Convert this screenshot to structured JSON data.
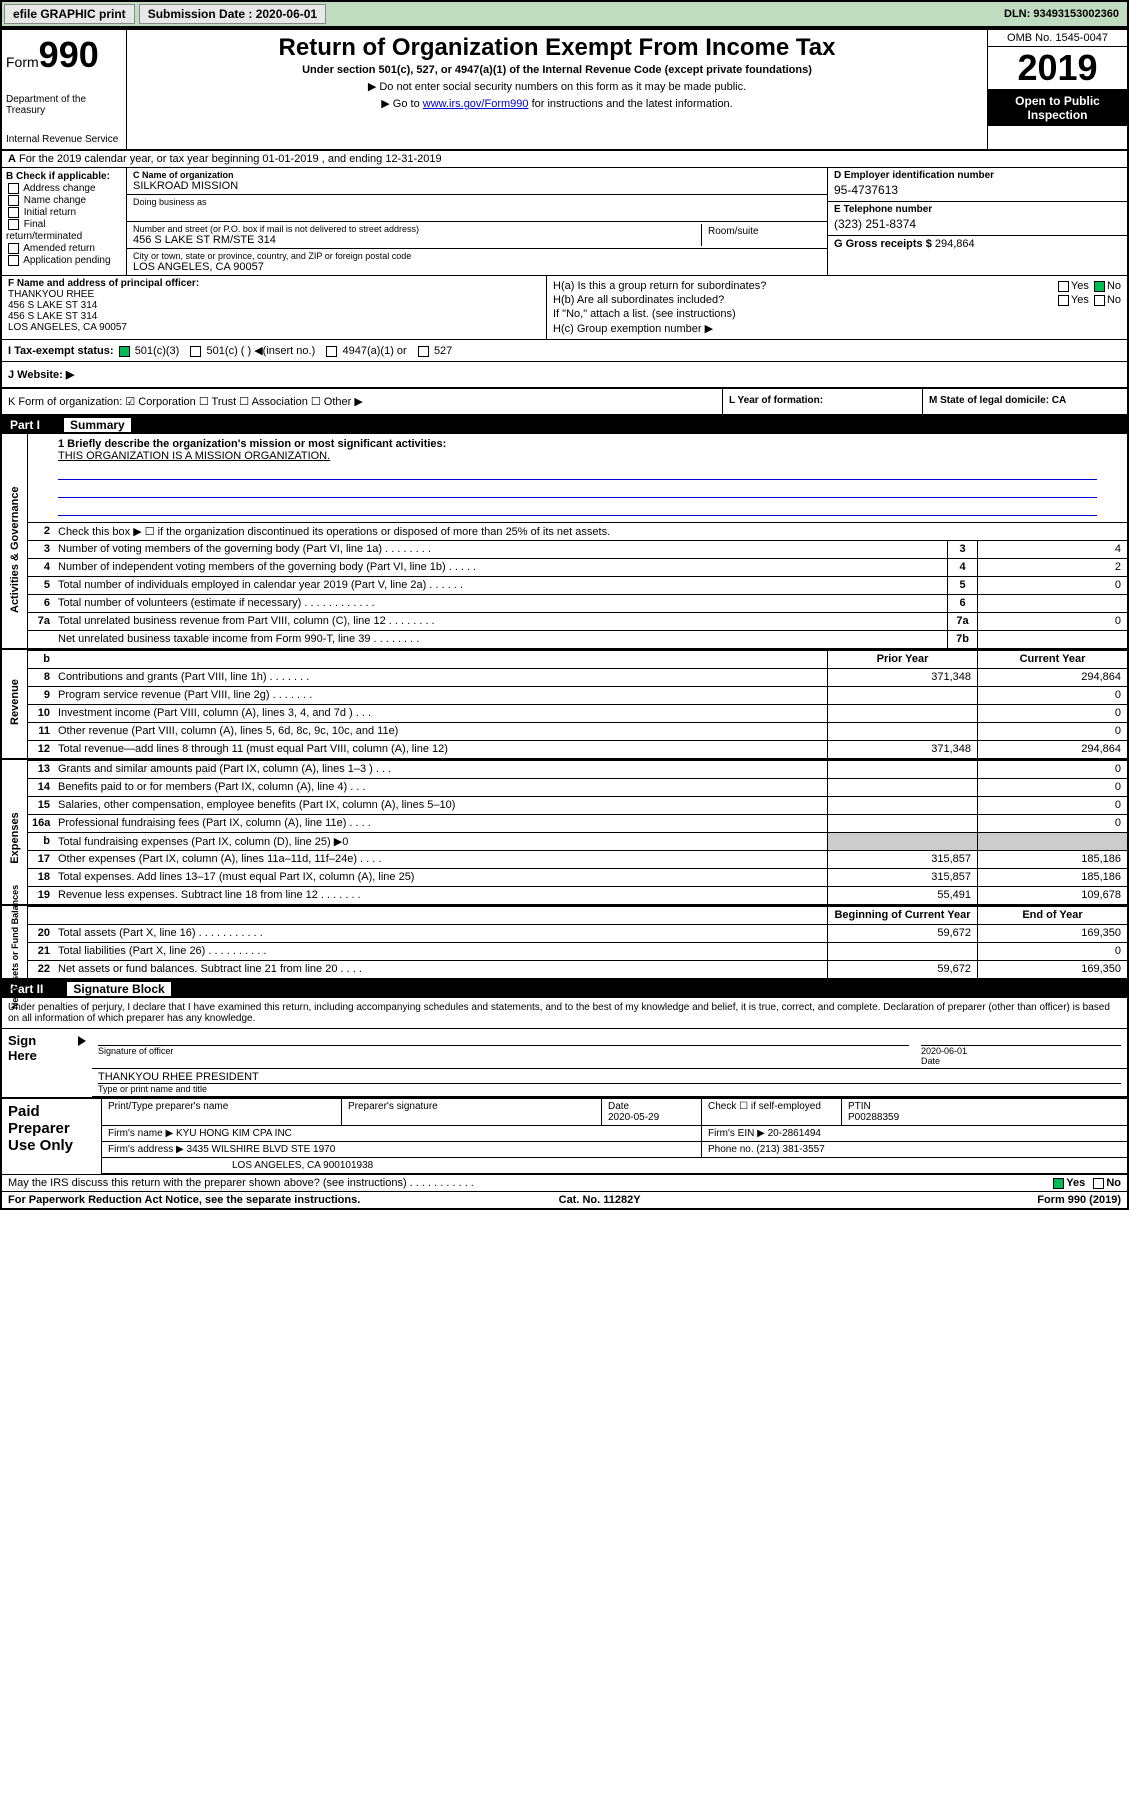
{
  "topbar": {
    "efile": "efile GRAPHIC print",
    "subdate_lbl": "Submission Date : 2020-06-01",
    "dln": "DLN: 93493153002360"
  },
  "header": {
    "form_lbl": "Form",
    "form_no": "990",
    "dept": "Department of the Treasury",
    "irs": "Internal Revenue Service",
    "title": "Return of Organization Exempt From Income Tax",
    "sub": "Under section 501(c), 527, or 4947(a)(1) of the Internal Revenue Code (except private foundations)",
    "note1": "▶ Do not enter social security numbers on this form as it may be made public.",
    "note2_pre": "▶ Go to ",
    "note2_link": "www.irs.gov/Form990",
    "note2_post": " for instructions and the latest information.",
    "omb": "OMB No. 1545-0047",
    "year": "2019",
    "open": "Open to Public Inspection"
  },
  "A": "For the 2019 calendar year, or tax year beginning 01-01-2019    , and ending 12-31-2019",
  "B": {
    "lbl": "B Check if applicable:",
    "opts": [
      "Address change",
      "Name change",
      "Initial return",
      "Final return/terminated",
      "Amended return",
      "Application pending"
    ]
  },
  "C": {
    "name_lbl": "C Name of organization",
    "name": "SILKROAD MISSION",
    "dba_lbl": "Doing business as",
    "addr_lbl": "Number and street (or P.O. box if mail is not delivered to street address)",
    "room_lbl": "Room/suite",
    "addr": "456 S LAKE ST RM/STE 314",
    "city_lbl": "City or town, state or province, country, and ZIP or foreign postal code",
    "city": "LOS ANGELES, CA  90057"
  },
  "D": {
    "lbl": "D Employer identification number",
    "val": "95-4737613"
  },
  "E": {
    "lbl": "E Telephone number",
    "val": "(323) 251-8374"
  },
  "G": {
    "lbl": "G Gross receipts $",
    "val": "294,864"
  },
  "F": {
    "lbl": "F  Name and address of principal officer:",
    "lines": [
      "THANKYOU RHEE",
      "456 S LAKE ST 314",
      "456 S LAKE ST 314",
      "LOS ANGELES, CA  90057"
    ]
  },
  "H": {
    "a": "H(a)  Is this a group return for subordinates?",
    "a_no": "No",
    "b": "H(b)  Are all subordinates included?",
    "b_yes": "Yes",
    "b_no": "No",
    "note": "If \"No,\" attach a list. (see instructions)",
    "c": "H(c)  Group exemption number ▶"
  },
  "I": {
    "lbl": "I   Tax-exempt status:",
    "o1": "501(c)(3)",
    "o2": "501(c) (  ) ◀(insert no.)",
    "o3": "4947(a)(1) or",
    "o4": "527"
  },
  "J": "J   Website: ▶",
  "K": "K Form of organization:    ☑ Corporation  ☐ Trust  ☐ Association  ☐ Other ▶",
  "L": "L Year of formation:",
  "M": "M State of legal domicile: CA",
  "part1": {
    "num": "Part I",
    "title": "Summary"
  },
  "mission_lbl": "1   Briefly describe the organization's mission or most significant activities:",
  "mission": "THIS ORGANIZATION IS A MISSION ORGANIZATION.",
  "line2": "Check this box ▶ ☐  if the organization discontinued its operations or disposed of more than 25% of its net assets.",
  "rows_gov": [
    {
      "n": "3",
      "t": "Number of voting members of the governing body (Part VI, line 1a)  .   .   .   .   .   .   .   .",
      "b": "3",
      "v": "4"
    },
    {
      "n": "4",
      "t": "Number of independent voting members of the governing body (Part VI, line 1b)  .   .   .   .   .",
      "b": "4",
      "v": "2"
    },
    {
      "n": "5",
      "t": "Total number of individuals employed in calendar year 2019 (Part V, line 2a)  .   .   .   .   .   .",
      "b": "5",
      "v": "0"
    },
    {
      "n": "6",
      "t": "Total number of volunteers (estimate if necessary)   .   .   .   .   .   .   .   .   .   .   .   .",
      "b": "6",
      "v": ""
    },
    {
      "n": "7a",
      "t": "Total unrelated business revenue from Part VIII, column (C), line 12  .   .   .   .   .   .   .   .",
      "b": "7a",
      "v": "0"
    },
    {
      "n": "",
      "t": "Net unrelated business taxable income from Form 990-T, line 39   .   .   .   .   .   .   .   .",
      "b": "7b",
      "v": ""
    }
  ],
  "col_hdr": {
    "py": "Prior Year",
    "cy": "Current Year"
  },
  "rows_rev": [
    {
      "n": "8",
      "t": "Contributions and grants (Part VIII, line 1h)   .   .   .   .   .   .   .",
      "py": "371,348",
      "cy": "294,864"
    },
    {
      "n": "9",
      "t": "Program service revenue (Part VIII, line 2g)   .   .   .   .   .   .   .",
      "py": "",
      "cy": "0"
    },
    {
      "n": "10",
      "t": "Investment income (Part VIII, column (A), lines 3, 4, and 7d )   .   .   .",
      "py": "",
      "cy": "0"
    },
    {
      "n": "11",
      "t": "Other revenue (Part VIII, column (A), lines 5, 6d, 8c, 9c, 10c, and 11e)",
      "py": "",
      "cy": "0"
    },
    {
      "n": "12",
      "t": "Total revenue—add lines 8 through 11 (must equal Part VIII, column (A), line 12)",
      "py": "371,348",
      "cy": "294,864"
    }
  ],
  "rows_exp": [
    {
      "n": "13",
      "t": "Grants and similar amounts paid (Part IX, column (A), lines 1–3 )  .   .   .",
      "py": "",
      "cy": "0"
    },
    {
      "n": "14",
      "t": "Benefits paid to or for members (Part IX, column (A), line 4)   .   .   .",
      "py": "",
      "cy": "0"
    },
    {
      "n": "15",
      "t": "Salaries, other compensation, employee benefits (Part IX, column (A), lines 5–10)",
      "py": "",
      "cy": "0"
    },
    {
      "n": "16a",
      "t": "Professional fundraising fees (Part IX, column (A), line 11e)  .   .   .   .",
      "py": "",
      "cy": "0"
    },
    {
      "n": "b",
      "t": "Total fundraising expenses (Part IX, column (D), line 25) ▶0",
      "py": "",
      "cy": "",
      "shade": true
    },
    {
      "n": "17",
      "t": "Other expenses (Part IX, column (A), lines 11a–11d, 11f–24e)  .   .   .   .",
      "py": "315,857",
      "cy": "185,186"
    },
    {
      "n": "18",
      "t": "Total expenses. Add lines 13–17 (must equal Part IX, column (A), line 25)",
      "py": "315,857",
      "cy": "185,186"
    },
    {
      "n": "19",
      "t": "Revenue less expenses. Subtract line 18 from line 12  .   .   .   .   .   .   .",
      "py": "55,491",
      "cy": "109,678"
    }
  ],
  "col_hdr2": {
    "py": "Beginning of Current Year",
    "cy": "End of Year"
  },
  "rows_net": [
    {
      "n": "20",
      "t": "Total assets (Part X, line 16)  .   .   .   .   .   .   .   .   .   .   .",
      "py": "59,672",
      "cy": "169,350"
    },
    {
      "n": "21",
      "t": "Total liabilities (Part X, line 26)   .   .   .   .   .   .   .   .   .   .",
      "py": "",
      "cy": "0"
    },
    {
      "n": "22",
      "t": "Net assets or fund balances. Subtract line 21 from line 20   .   .   .   .",
      "py": "59,672",
      "cy": "169,350"
    }
  ],
  "side_labels": {
    "gov": "Activities & Governance",
    "rev": "Revenue",
    "exp": "Expenses",
    "net": "Net Assets or Fund Balances"
  },
  "part2": {
    "num": "Part II",
    "title": "Signature Block"
  },
  "sig": {
    "penalty": "Under penalties of perjury, I declare that I have examined this return, including accompanying schedules and statements, and to the best of my knowledge and belief, it is true, correct, and complete. Declaration of preparer (other than officer) is based on all information of which preparer has any knowledge.",
    "sign_here": "Sign Here",
    "sig_off": "Signature of officer",
    "date_lbl": "Date",
    "date": "2020-06-01",
    "name": "THANKYOU RHEE PRESIDENT",
    "name_lbl": "Type or print name and title"
  },
  "prep": {
    "lbl": "Paid Preparer Use Only",
    "pname_lbl": "Print/Type preparer's name",
    "psig_lbl": "Preparer's signature",
    "pdate_lbl": "Date",
    "pdate": "2020-05-29",
    "chk_lbl": "Check ☐ if self-employed",
    "ptin_lbl": "PTIN",
    "ptin": "P00288359",
    "firm_lbl": "Firm's name   ▶",
    "firm": "KYU HONG KIM CPA INC",
    "ein_lbl": "Firm's EIN ▶",
    "ein": "20-2861494",
    "addr_lbl": "Firm's address ▶",
    "addr1": "3435 WILSHIRE BLVD STE 1970",
    "addr2": "LOS ANGELES, CA  900101938",
    "phone_lbl": "Phone no.",
    "phone": "(213) 381-3557"
  },
  "discuss": "May the IRS discuss this return with the preparer shown above? (see instructions)   .   .   .   .   .   .   .   .   .   .   .",
  "discuss_yes": "Yes",
  "discuss_no": "No",
  "footer": {
    "l": "For Paperwork Reduction Act Notice, see the separate instructions.",
    "c": "Cat. No. 11282Y",
    "r": "Form 990 (2019)"
  }
}
